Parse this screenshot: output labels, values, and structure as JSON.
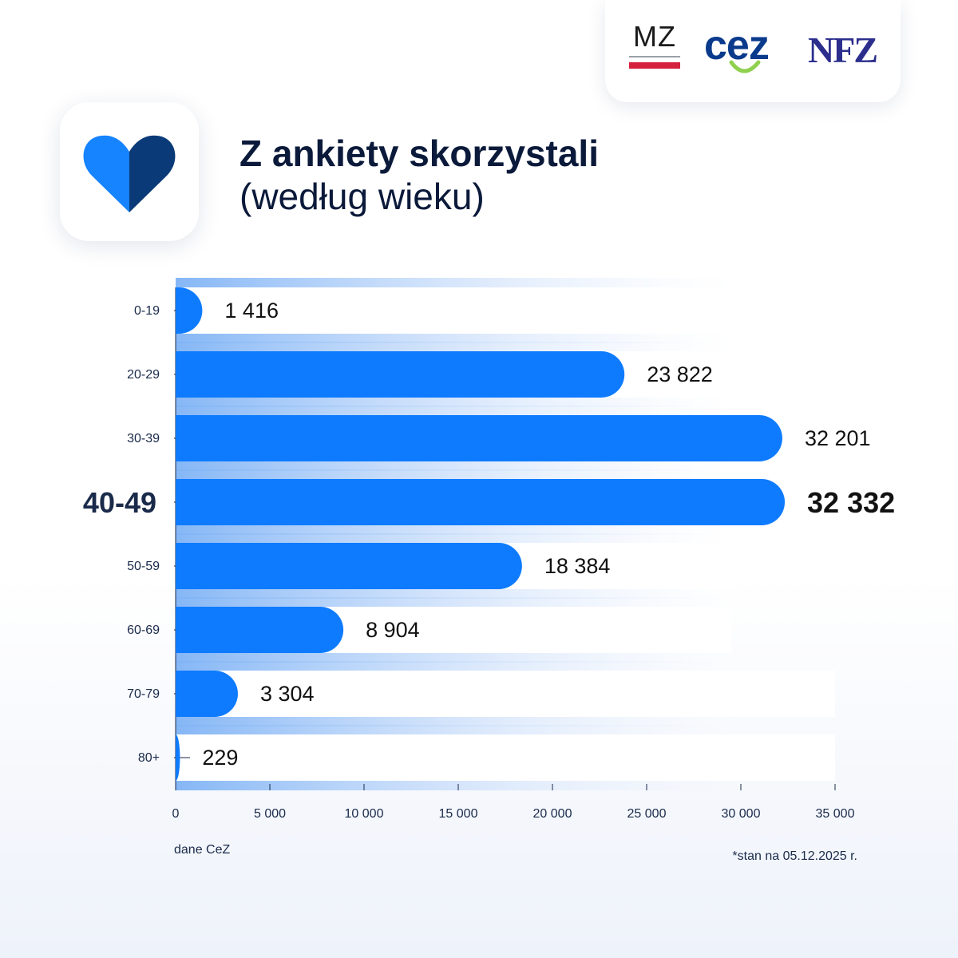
{
  "logos": {
    "mz": "MZ",
    "cez": "cez",
    "nfz": "NFZ"
  },
  "icon": "heart-icon",
  "title": {
    "line1": "Z ankiety skorzystali",
    "line2": "(według wieku)"
  },
  "footer": {
    "source": "dane CeZ",
    "as_of": "*stan na 05.12.2025 r."
  },
  "colors": {
    "bar": "#0e7bff",
    "heart_light": "#1683ff",
    "heart_dark": "#0a3a78",
    "text": "#0b1a3a"
  },
  "chart_data": {
    "type": "bar",
    "orientation": "horizontal",
    "categories": [
      "0-19",
      "20-29",
      "30-39",
      "40-49",
      "50-59",
      "60-69",
      "70-79",
      "80+"
    ],
    "values": [
      1416,
      23822,
      32201,
      32332,
      18384,
      8904,
      3304,
      229
    ],
    "value_labels": [
      "1 416",
      "23 822",
      "32 201",
      "32 332",
      "18 384",
      "8 904",
      "3 304",
      "229"
    ],
    "highlight": "40-49",
    "xlim": [
      0,
      35000
    ],
    "xticks": [
      0,
      5000,
      10000,
      15000,
      20000,
      25000,
      30000,
      35000
    ],
    "xtick_labels": [
      "0",
      "5 000",
      "10 000",
      "15 000",
      "20 000",
      "25 000",
      "30 000",
      "35 000"
    ]
  }
}
